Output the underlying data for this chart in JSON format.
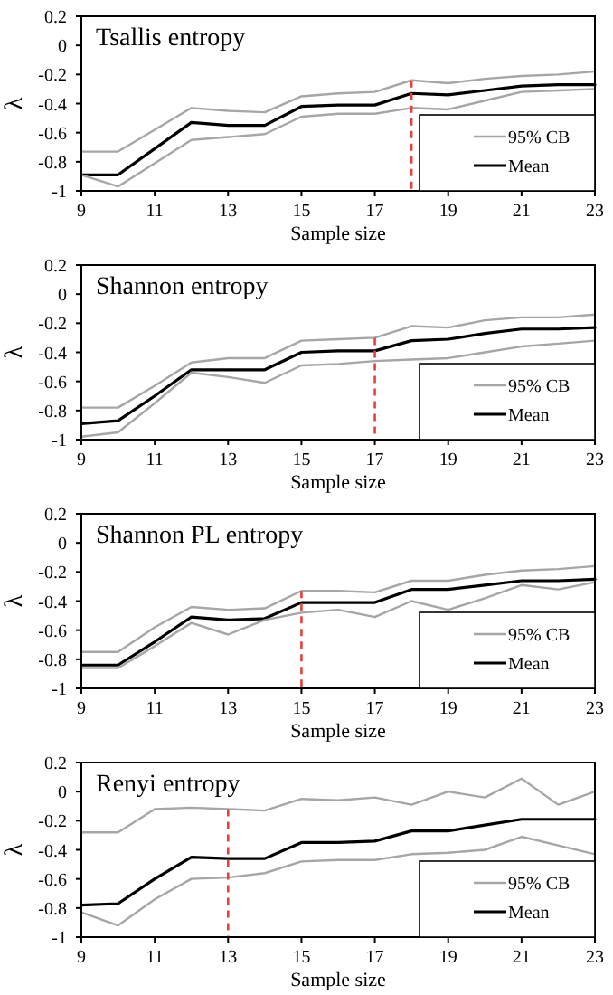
{
  "chart_data": [
    {
      "type": "line",
      "title": "Tsallis entropy",
      "xlabel": "Sample size",
      "ylabel": "λ",
      "x": [
        9,
        10,
        11,
        12,
        13,
        14,
        15,
        16,
        17,
        18,
        19,
        20,
        21,
        22,
        23
      ],
      "xlim": [
        9,
        23
      ],
      "xticks": [
        9,
        11,
        13,
        15,
        17,
        19,
        21,
        23
      ],
      "ylim": [
        -1,
        0.2
      ],
      "yticks": [
        -1,
        -0.8,
        -0.6,
        -0.4,
        -0.2,
        0,
        0.2
      ],
      "legend": "bottom right",
      "grid": false,
      "line_style": "solid",
      "ref_lines": [
        {
          "axis": "x",
          "value": 18,
          "color": "#e8413c",
          "line_style": "dashed"
        }
      ],
      "series": [
        {
          "name": "95% CB",
          "color": "#a6a6a6",
          "values": [
            -0.73,
            -0.73,
            -0.58,
            -0.43,
            -0.45,
            -0.46,
            -0.35,
            -0.33,
            -0.32,
            -0.24,
            -0.26,
            -0.23,
            -0.21,
            -0.2,
            -0.18
          ]
        },
        {
          "name": "Mean",
          "color": "#000000",
          "values": [
            -0.89,
            -0.89,
            -0.71,
            -0.53,
            -0.55,
            -0.55,
            -0.42,
            -0.41,
            -0.41,
            -0.33,
            -0.34,
            -0.31,
            -0.28,
            -0.27,
            -0.27
          ]
        },
        {
          "color": "#a6a6a6",
          "values": [
            -0.89,
            -0.97,
            -0.81,
            -0.65,
            -0.63,
            -0.61,
            -0.49,
            -0.47,
            -0.47,
            -0.43,
            -0.44,
            -0.38,
            -0.32,
            -0.31,
            -0.3
          ]
        }
      ]
    },
    {
      "type": "line",
      "title": "Shannon entropy",
      "xlabel": "Sample size",
      "ylabel": "λ",
      "x": [
        9,
        10,
        11,
        12,
        13,
        14,
        15,
        16,
        17,
        18,
        19,
        20,
        21,
        22,
        23
      ],
      "xlim": [
        9,
        23
      ],
      "xticks": [
        9,
        11,
        13,
        15,
        17,
        19,
        21,
        23
      ],
      "ylim": [
        -1,
        0.2
      ],
      "yticks": [
        -1,
        -0.8,
        -0.6,
        -0.4,
        -0.2,
        0,
        0.2
      ],
      "legend": "bottom right",
      "grid": false,
      "line_style": "solid",
      "ref_lines": [
        {
          "axis": "x",
          "value": 17,
          "color": "#e8413c",
          "line_style": "dashed"
        }
      ],
      "series": [
        {
          "name": "95% CB",
          "color": "#a6a6a6",
          "values": [
            -0.78,
            -0.78,
            -0.63,
            -0.47,
            -0.44,
            -0.44,
            -0.32,
            -0.31,
            -0.3,
            -0.22,
            -0.23,
            -0.18,
            -0.16,
            -0.16,
            -0.14
          ]
        },
        {
          "name": "Mean",
          "color": "#000000",
          "values": [
            -0.89,
            -0.87,
            -0.7,
            -0.52,
            -0.52,
            -0.52,
            -0.4,
            -0.39,
            -0.39,
            -0.32,
            -0.31,
            -0.27,
            -0.24,
            -0.24,
            -0.23
          ]
        },
        {
          "color": "#a6a6a6",
          "values": [
            -0.98,
            -0.95,
            -0.75,
            -0.54,
            -0.57,
            -0.61,
            -0.49,
            -0.48,
            -0.46,
            -0.45,
            -0.44,
            -0.4,
            -0.36,
            -0.34,
            -0.32
          ]
        }
      ]
    },
    {
      "type": "line",
      "title": "Shannon PL entropy",
      "xlabel": "Sample size",
      "ylabel": "λ",
      "x": [
        9,
        10,
        11,
        12,
        13,
        14,
        15,
        16,
        17,
        18,
        19,
        20,
        21,
        22,
        23
      ],
      "xlim": [
        9,
        23
      ],
      "xticks": [
        9,
        11,
        13,
        15,
        17,
        19,
        21,
        23
      ],
      "ylim": [
        -1,
        0.2
      ],
      "yticks": [
        -1,
        -0.8,
        -0.6,
        -0.4,
        -0.2,
        0,
        0.2
      ],
      "legend": "bottom right",
      "grid": false,
      "line_style": "solid",
      "ref_lines": [
        {
          "axis": "x",
          "value": 15,
          "color": "#e8413c",
          "line_style": "dashed"
        }
      ],
      "series": [
        {
          "name": "95% CB",
          "color": "#a6a6a6",
          "values": [
            -0.75,
            -0.75,
            -0.58,
            -0.44,
            -0.46,
            -0.45,
            -0.33,
            -0.33,
            -0.34,
            -0.26,
            -0.26,
            -0.22,
            -0.19,
            -0.18,
            -0.16
          ]
        },
        {
          "name": "Mean",
          "color": "#000000",
          "values": [
            -0.84,
            -0.84,
            -0.68,
            -0.51,
            -0.53,
            -0.52,
            -0.41,
            -0.41,
            -0.41,
            -0.32,
            -0.32,
            -0.29,
            -0.26,
            -0.26,
            -0.25
          ]
        },
        {
          "color": "#a6a6a6",
          "values": [
            -0.86,
            -0.86,
            -0.71,
            -0.55,
            -0.63,
            -0.53,
            -0.48,
            -0.46,
            -0.51,
            -0.4,
            -0.46,
            -0.38,
            -0.29,
            -0.32,
            -0.27
          ]
        }
      ]
    },
    {
      "type": "line",
      "title": "Renyi entropy",
      "xlabel": "Sample size",
      "ylabel": "λ",
      "x": [
        9,
        10,
        11,
        12,
        13,
        14,
        15,
        16,
        17,
        18,
        19,
        20,
        21,
        22,
        23
      ],
      "xlim": [
        9,
        23
      ],
      "xticks": [
        9,
        11,
        13,
        15,
        17,
        19,
        21,
        23
      ],
      "ylim": [
        -1,
        0.2
      ],
      "yticks": [
        -1,
        -0.8,
        -0.6,
        -0.4,
        -0.2,
        0,
        0.2
      ],
      "legend": "bottom right",
      "grid": false,
      "line_style": "solid",
      "ref_lines": [
        {
          "axis": "x",
          "value": 13,
          "color": "#e8413c",
          "line_style": "dashed"
        }
      ],
      "series": [
        {
          "name": "95% CB",
          "color": "#a6a6a6",
          "values": [
            -0.28,
            -0.28,
            -0.12,
            -0.11,
            -0.12,
            -0.13,
            -0.05,
            -0.06,
            -0.04,
            -0.09,
            0,
            -0.04,
            0.09,
            -0.09,
            0
          ]
        },
        {
          "name": "Mean",
          "color": "#000000",
          "values": [
            -0.78,
            -0.77,
            -0.6,
            -0.45,
            -0.46,
            -0.46,
            -0.35,
            -0.35,
            -0.34,
            -0.27,
            -0.27,
            -0.23,
            -0.19,
            -0.19,
            -0.19
          ]
        },
        {
          "color": "#a6a6a6",
          "values": [
            -0.83,
            -0.92,
            -0.74,
            -0.6,
            -0.59,
            -0.56,
            -0.48,
            -0.47,
            -0.47,
            -0.43,
            -0.42,
            -0.4,
            -0.31,
            -0.37,
            -0.43
          ]
        }
      ]
    }
  ]
}
